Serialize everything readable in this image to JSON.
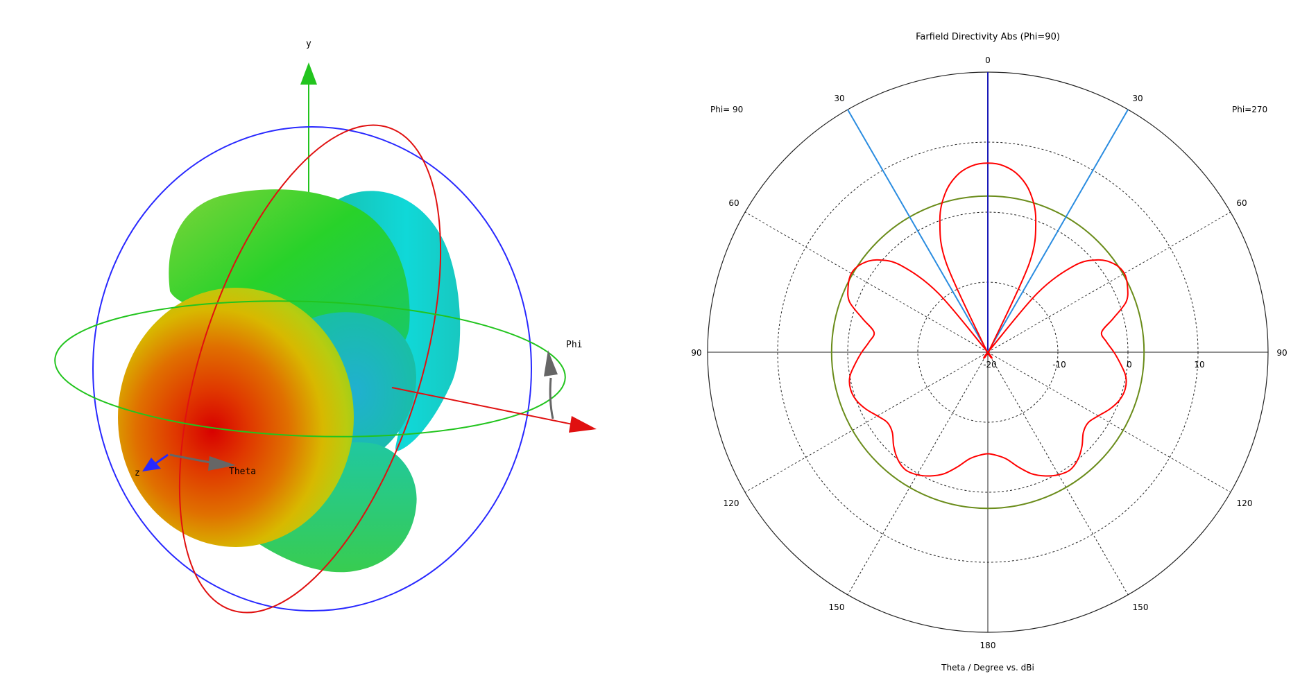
{
  "farfield_3d": {
    "axis_labels": {
      "y": "y",
      "z": "z",
      "theta": "Theta",
      "phi": "Phi"
    },
    "colors": {
      "y_axis": "#22c41e",
      "x_axis": "#e01010",
      "z_axis": "#2828ff",
      "phi_ring": "#22c41e",
      "theta_ring": "#e01010",
      "outer_ring": "#2828ff",
      "pointer": "#666666"
    }
  },
  "chart_data": {
    "type": "polar",
    "title": "Farfield Directivity Abs (Phi=90)",
    "xlabel": "Theta / Degree vs. dBi",
    "left_label": "Phi= 90",
    "right_label": "Phi=270",
    "angle_labels": {
      "top": "0",
      "upper_left": "30",
      "upper_right": "30",
      "mid_upper_left": "60",
      "mid_upper_right": "60",
      "left": "90",
      "right": "90",
      "mid_lower_left": "120",
      "mid_lower_right": "120",
      "lower_left": "150",
      "lower_right": "150",
      "bottom": "180"
    },
    "radial_ticks": [
      "-20",
      "-10",
      "0",
      "10"
    ],
    "radial_range_dbi": [
      -20,
      20
    ],
    "radial_circles_dbi": [
      -20,
      -10,
      0,
      10,
      20
    ],
    "grid": true,
    "reference_circle_dbi": 2.3,
    "main_lobe_direction_deg": 0,
    "beam_lines_deg": [
      -30,
      30
    ],
    "series": [
      {
        "color": "#ff0000",
        "theta_deg": [
          0,
          5,
          10,
          15,
          20,
          25,
          30,
          35,
          40,
          45,
          50,
          55,
          60,
          65,
          70,
          75,
          80,
          85,
          90,
          95,
          100,
          105,
          110,
          115,
          120,
          125,
          130,
          135,
          140,
          145,
          150,
          155,
          160,
          165,
          170,
          175,
          180
        ],
        "directivity_dbi": [
          7.0,
          6.7,
          5.6,
          3.5,
          0.0,
          -6.0,
          -19.0,
          -20.0,
          -9.0,
          -2.5,
          0.5,
          2.0,
          2.5,
          2.0,
          1.0,
          -1.5,
          -3.5,
          -3.0,
          -2.0,
          -1.0,
          0.0,
          0.3,
          0.0,
          -0.8,
          -1.8,
          -2.5,
          -2.2,
          -1.0,
          0.0,
          0.5,
          0.2,
          -0.5,
          -1.5,
          -3.0,
          -4.5,
          -5.2,
          -5.5
        ]
      }
    ]
  }
}
